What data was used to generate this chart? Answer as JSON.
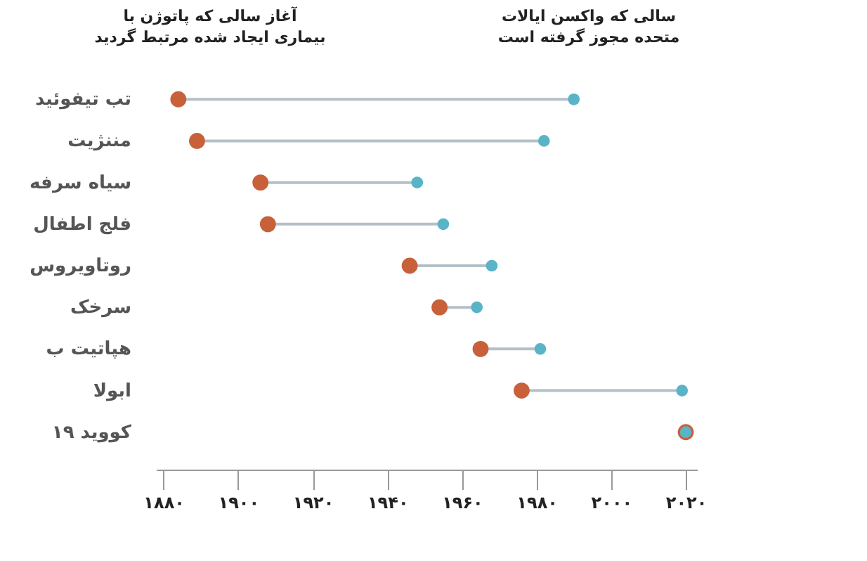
{
  "chart_data": {
    "type": "scatter",
    "orientation": "horizontal",
    "categories": [
      "تب تیفوئید",
      "مننژیت",
      "سیاه سرفه",
      "فلج اطفال",
      "روتاویروس",
      "سرخک",
      "هپاتیت ب",
      "ابولا",
      "کووید ۱۹"
    ],
    "series": [
      {
        "color": "#c8603a",
        "values": [
          1884,
          1889,
          1906,
          1908,
          1946,
          1954,
          1965,
          1976,
          2020
        ]
      },
      {
        "color": "#5ab4c8",
        "values": [
          1990,
          1982,
          1948,
          1955,
          1968,
          1964,
          1981,
          2019,
          2020
        ]
      }
    ],
    "marker": "circle",
    "xlim": [
      1878,
      2023
    ],
    "xticks": [
      {
        "value": 1880,
        "label": "۱۸۸۰"
      },
      {
        "value": 1900,
        "label": "۱۹۰۰"
      },
      {
        "value": 1920,
        "label": "۱۹۲۰"
      },
      {
        "value": 1940,
        "label": "۱۹۴۰"
      },
      {
        "value": 1960,
        "label": "۱۹۶۰"
      },
      {
        "value": 1980,
        "label": "۱۹۸۰"
      },
      {
        "value": 2000,
        "label": "۲۰۰۰"
      },
      {
        "value": 2020,
        "label": "۲۰۲۰"
      }
    ],
    "grid": false,
    "annotations": [
      "آغاز سالی که پاتوژن با بیماری ایجاد شده مرتبط گردید",
      "سالی که واکسن ایالات متحده مجوز گرفته است"
    ]
  }
}
